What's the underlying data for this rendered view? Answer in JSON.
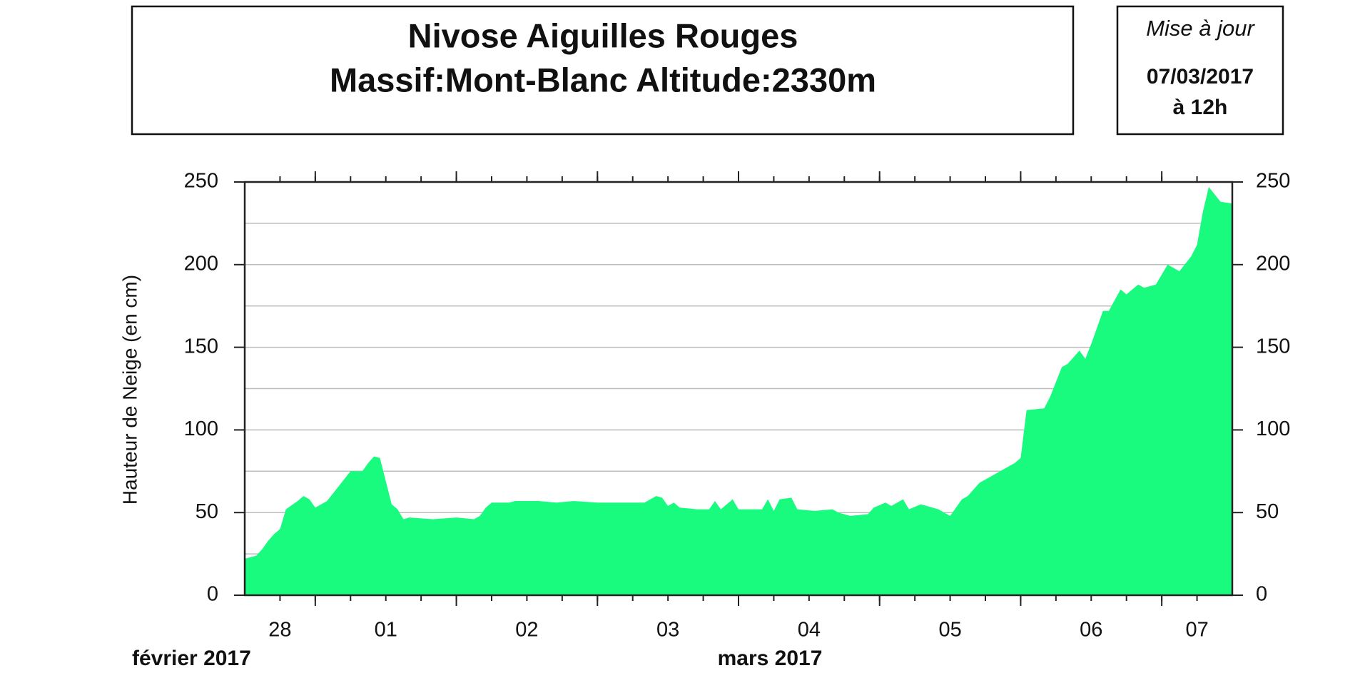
{
  "chart_data": {
    "type": "area",
    "title": [
      "Nivose Aiguilles Rouges",
      "Massif:Mont-Blanc Altitude:2330m"
    ],
    "update": {
      "heading": "Mise à jour",
      "date": "07/03/2017",
      "time": "à 12h"
    },
    "ylabel": "Hauteur de Neige (en cm)",
    "month_labels": [
      "février 2017",
      "mars 2017"
    ],
    "color": "#19fb7f",
    "grid": true,
    "xlim": [
      "2017-02-28T12:00",
      "2017-03-07T12:00"
    ],
    "ylim": [
      0,
      250
    ],
    "yticks": [
      0,
      50,
      100,
      150,
      200,
      250
    ],
    "minor_yticks": [
      25,
      75,
      125,
      175,
      225
    ],
    "y2lim": [
      0,
      250
    ],
    "y2ticks": [
      0,
      50,
      100,
      150,
      200,
      250
    ],
    "day_labels": [
      {
        "value": "2017-02-28T00:00",
        "label": "28"
      },
      {
        "value": "2017-03-01T00:00",
        "label": "01"
      },
      {
        "value": "2017-03-02T00:00",
        "label": "02"
      },
      {
        "value": "2017-03-03T00:00",
        "label": "03"
      },
      {
        "value": "2017-03-04T00:00",
        "label": "04"
      },
      {
        "value": "2017-03-05T00:00",
        "label": "05"
      },
      {
        "value": "2017-03-06T00:00",
        "label": "06"
      },
      {
        "value": "2017-03-07T00:00",
        "label": "07"
      }
    ],
    "x": [
      "2017-02-28T12:00",
      "2017-02-28T14:00",
      "2017-02-28T15:00",
      "2017-02-28T16:00",
      "2017-02-28T17:00",
      "2017-02-28T18:00",
      "2017-02-28T19:00",
      "2017-02-28T21:00",
      "2017-02-28T22:00",
      "2017-02-28T23:00",
      "2017-03-01T00:00",
      "2017-03-01T02:00",
      "2017-03-01T04:00",
      "2017-03-01T06:00",
      "2017-03-01T08:00",
      "2017-03-01T09:00",
      "2017-03-01T10:00",
      "2017-03-01T11:00",
      "2017-03-01T13:00",
      "2017-03-01T14:00",
      "2017-03-01T15:00",
      "2017-03-01T16:00",
      "2017-03-01T20:00",
      "2017-03-02T00:00",
      "2017-03-02T03:00",
      "2017-03-02T04:00",
      "2017-03-02T05:00",
      "2017-03-02T06:00",
      "2017-03-02T09:00",
      "2017-03-02T10:00",
      "2017-03-02T14:00",
      "2017-03-02T17:00",
      "2017-03-02T20:00",
      "2017-03-03T00:00",
      "2017-03-03T08:00",
      "2017-03-03T10:00",
      "2017-03-03T11:00",
      "2017-03-03T12:00",
      "2017-03-03T13:00",
      "2017-03-03T14:00",
      "2017-03-03T17:00",
      "2017-03-03T19:00",
      "2017-03-03T20:00",
      "2017-03-03T21:00",
      "2017-03-03T23:00",
      "2017-03-04T00:00",
      "2017-03-04T04:00",
      "2017-03-04T05:00",
      "2017-03-04T06:00",
      "2017-03-04T07:00",
      "2017-03-04T09:00",
      "2017-03-04T10:00",
      "2017-03-04T13:00",
      "2017-03-04T16:00",
      "2017-03-04T17:00",
      "2017-03-04T19:00",
      "2017-03-04T22:00",
      "2017-03-04T23:00",
      "2017-03-05T01:00",
      "2017-03-05T02:00",
      "2017-03-05T04:00",
      "2017-03-05T05:00",
      "2017-03-05T07:00",
      "2017-03-05T08:00",
      "2017-03-05T10:00",
      "2017-03-05T12:00",
      "2017-03-05T14:00",
      "2017-03-05T15:00",
      "2017-03-05T17:00",
      "2017-03-05T18:00",
      "2017-03-05T21:00",
      "2017-03-05T23:00",
      "2017-03-06T00:00",
      "2017-03-06T01:00",
      "2017-03-06T04:00",
      "2017-03-06T05:00",
      "2017-03-06T07:00",
      "2017-03-06T08:00",
      "2017-03-06T10:00",
      "2017-03-06T11:00",
      "2017-03-06T12:00",
      "2017-03-06T14:00",
      "2017-03-06T15:00",
      "2017-03-06T17:00",
      "2017-03-06T18:00",
      "2017-03-06T20:00",
      "2017-03-06T21:00",
      "2017-03-06T23:00",
      "2017-03-07T01:00",
      "2017-03-07T02:00",
      "2017-03-07T03:00",
      "2017-03-07T05:00",
      "2017-03-07T06:00",
      "2017-03-07T07:00",
      "2017-03-07T08:00",
      "2017-03-07T10:00",
      "2017-03-07T12:00"
    ],
    "values": [
      22,
      24,
      28,
      33,
      37,
      40,
      52,
      57,
      60,
      58,
      53,
      57,
      66,
      75,
      75,
      80,
      84,
      83,
      55,
      52,
      46,
      47,
      46,
      47,
      46,
      48,
      53,
      56,
      56,
      57,
      57,
      56,
      57,
      56,
      56,
      60,
      59,
      54,
      56,
      53,
      52,
      52,
      57,
      52,
      58,
      52,
      52,
      58,
      51,
      58,
      59,
      52,
      51,
      52,
      50,
      48,
      49,
      53,
      56,
      54,
      58,
      52,
      55,
      54,
      52,
      48,
      58,
      60,
      68,
      70,
      76,
      80,
      83,
      112,
      113,
      120,
      138,
      140,
      148,
      143,
      152,
      172,
      172,
      185,
      182,
      188,
      186,
      188,
      200,
      198,
      196,
      205,
      212,
      232,
      247,
      238,
      237
    ]
  }
}
